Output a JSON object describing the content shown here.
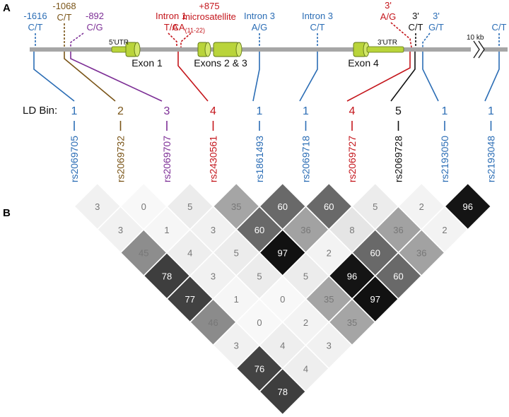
{
  "panels": {
    "a": "A",
    "b": "B"
  },
  "gene": {
    "exon_labels": [
      "Exon 1",
      "Exons 2 & 3",
      "Exon 4"
    ],
    "utr_5": "5'UTR",
    "utr_3": "3'UTR",
    "gap_label": "10 kb"
  },
  "ld_bin_label": "LD Bin:",
  "colors": {
    "blue": "#2b6db5",
    "brown": "#7a5518",
    "purple": "#7d2f96",
    "red": "#c4161c",
    "black": "#111111",
    "backbone": "#a6a6a6",
    "exon_fill": "#b9d43a",
    "exon_stroke": "#5e7414"
  },
  "snps": [
    {
      "id": "rs2069705",
      "bin": "1",
      "color": "blue",
      "annotation": [
        "-1616",
        "C/T"
      ]
    },
    {
      "id": "rs2069732",
      "bin": "2",
      "color": "brown",
      "annotation": [
        "-1068",
        "C/T"
      ]
    },
    {
      "id": "rs2069707",
      "bin": "3",
      "color": "purple",
      "annotation": [
        "-892",
        "C/G"
      ]
    },
    {
      "id": "rs2430561",
      "bin": "4",
      "color": "red",
      "annotation": [
        "Intron 1",
        "T/A"
      ],
      "extra_annotation": [
        "+875",
        "microsatellite",
        "CA",
        "(11-22)"
      ]
    },
    {
      "id": "rs1861493",
      "bin": "1",
      "color": "blue",
      "annotation": [
        "Intron 3",
        "A/G"
      ]
    },
    {
      "id": "rs2069718",
      "bin": "1",
      "color": "blue",
      "annotation": [
        "Intron 3",
        "C/T"
      ]
    },
    {
      "id": "rs2069727",
      "bin": "4",
      "color": "red",
      "annotation": [
        "3'",
        "A/G"
      ]
    },
    {
      "id": "rs2069728",
      "bin": "5",
      "color": "black",
      "annotation": [
        "3'",
        "C/T"
      ]
    },
    {
      "id": "rs2193050",
      "bin": "1",
      "color": "blue",
      "annotation": [
        "3'",
        "G/T"
      ]
    },
    {
      "id": "rs2193048",
      "bin": "1",
      "color": "blue",
      "annotation": [
        "C/T"
      ]
    }
  ],
  "ld_matrix": [
    [
      3,
      3,
      45,
      78,
      77,
      46,
      3,
      76,
      78
    ],
    [
      0,
      1,
      4,
      3,
      1,
      0,
      4,
      4
    ],
    [
      5,
      3,
      5,
      5,
      0,
      2,
      3
    ],
    [
      35,
      60,
      97,
      5,
      35,
      35
    ],
    [
      60,
      36,
      2,
      96,
      97
    ],
    [
      60,
      8,
      60,
      60
    ],
    [
      5,
      36,
      36
    ],
    [
      2,
      2
    ],
    [
      96
    ]
  ]
}
